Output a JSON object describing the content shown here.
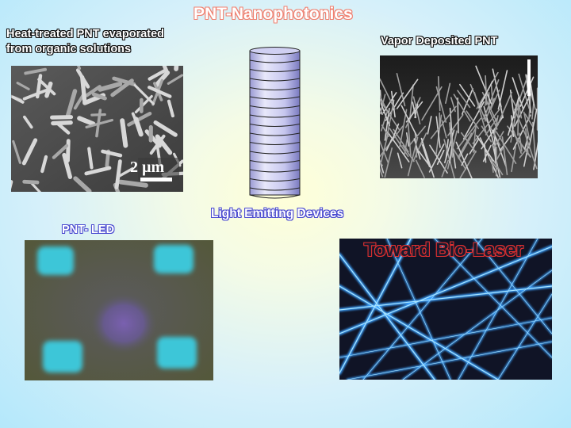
{
  "title": "PNT-Nanophotonics",
  "panels": {
    "top_left": {
      "caption_line1": "Heat-treated PNT evaporated",
      "caption_line2": "from organic solutions",
      "scale_label": "2 µm"
    },
    "top_right": {
      "caption": "Vapor Deposited PNT"
    },
    "center": {
      "caption": "Light Emitting Devices"
    },
    "bottom_left": {
      "caption": "PNT- LED"
    },
    "bottom_right": {
      "caption": "Toward Bio-Laser"
    }
  },
  "colors": {
    "title": "#f08070",
    "led_glow": "#3dc6d8",
    "laser_fiber": "#3aa0ff"
  }
}
